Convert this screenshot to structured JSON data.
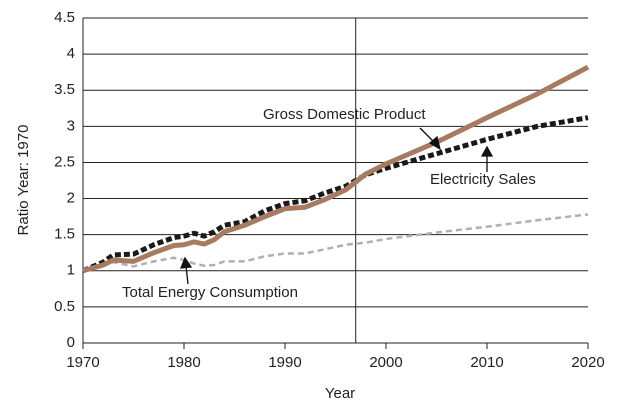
{
  "chart_data": {
    "type": "line",
    "x_label": "Year",
    "y_label": "Ratio Year: 1970",
    "x": [
      1970,
      1972,
      1973,
      1975,
      1977,
      1979,
      1980,
      1981,
      1982,
      1983,
      1984,
      1986,
      1988,
      1990,
      1992,
      1994,
      1996,
      1998,
      2000,
      2005,
      2010,
      2015,
      2020
    ],
    "series": [
      {
        "name": "Gross Domestic Product",
        "color": "#a87a5f",
        "style": "solid",
        "width": 5,
        "values": [
          1.0,
          1.08,
          1.15,
          1.13,
          1.25,
          1.35,
          1.36,
          1.4,
          1.37,
          1.43,
          1.54,
          1.63,
          1.75,
          1.86,
          1.88,
          1.99,
          2.12,
          2.34,
          2.48,
          2.78,
          3.12,
          3.45,
          3.82
        ]
      },
      {
        "name": "Electricity Sales",
        "color": "#1a1a1a",
        "style": "dashed",
        "width": 5,
        "values": [
          1.0,
          1.12,
          1.22,
          1.23,
          1.36,
          1.46,
          1.48,
          1.52,
          1.48,
          1.54,
          1.63,
          1.68,
          1.83,
          1.93,
          1.97,
          2.08,
          2.17,
          2.33,
          2.42,
          2.62,
          2.82,
          3.0,
          3.12
        ]
      },
      {
        "name": "Total Energy Consumption",
        "color": "#b0b0b0",
        "style": "dashed",
        "width": 2.5,
        "values": [
          1.0,
          1.08,
          1.12,
          1.06,
          1.13,
          1.18,
          1.15,
          1.1,
          1.07,
          1.08,
          1.13,
          1.13,
          1.2,
          1.24,
          1.24,
          1.3,
          1.36,
          1.39,
          1.44,
          1.53,
          1.61,
          1.7,
          1.78
        ]
      }
    ],
    "xlim": [
      1970,
      2020
    ],
    "xticks": [
      1970,
      1980,
      1990,
      2000,
      2010,
      2020
    ],
    "ylim": [
      0,
      4.5
    ],
    "yticks": [
      0,
      0.5,
      1,
      1.5,
      2,
      2.5,
      3,
      3.5,
      4,
      4.5
    ],
    "grid": true,
    "vline_x": 1997
  }
}
